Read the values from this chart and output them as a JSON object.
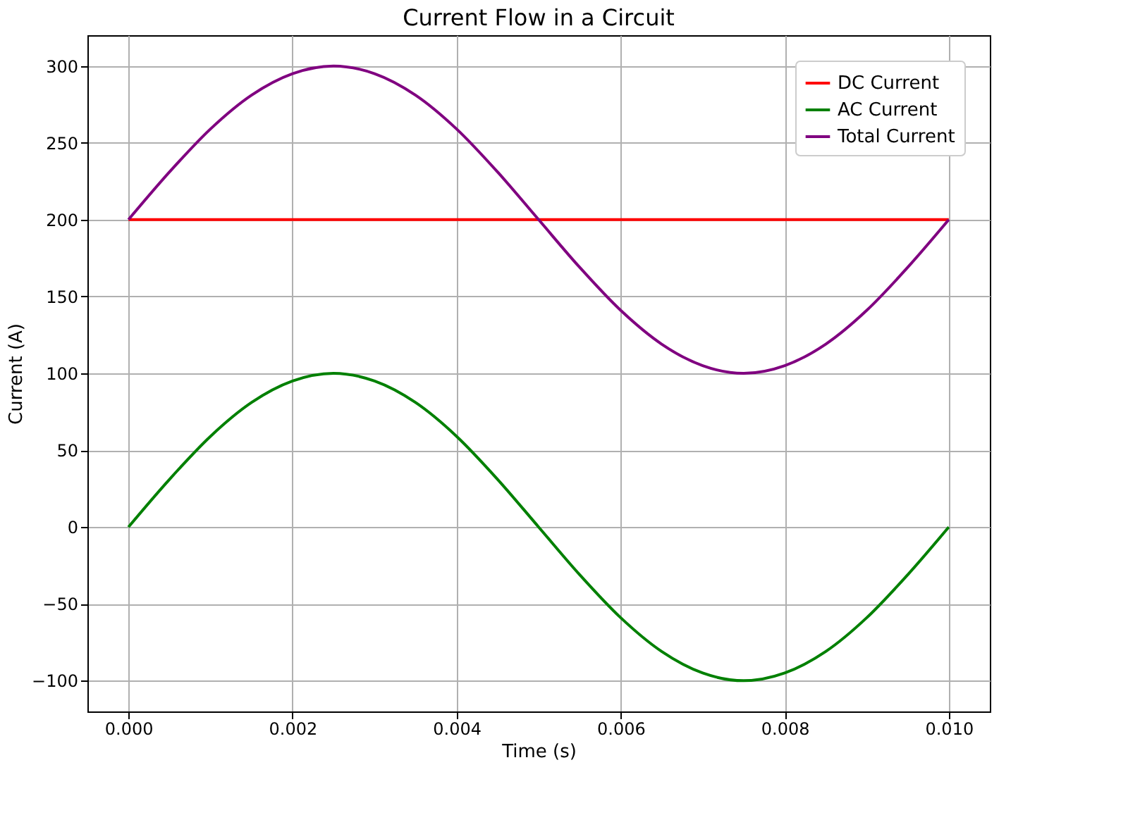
{
  "chart_data": {
    "type": "line",
    "title": "Current Flow in a Circuit",
    "xlabel": "Time (s)",
    "ylabel": "Current (A)",
    "x": [
      0,
      0.0005,
      0.001,
      0.0015,
      0.002,
      0.0025,
      0.003,
      0.0035,
      0.004,
      0.0045,
      0.005,
      0.0055,
      0.006,
      0.0065,
      0.007,
      0.0075,
      0.008,
      0.0085,
      0.009,
      0.0095,
      0.01
    ],
    "series": [
      {
        "name": "DC Current",
        "color": "#ff0000",
        "values": [
          200,
          200,
          200,
          200,
          200,
          200,
          200,
          200,
          200,
          200,
          200,
          200,
          200,
          200,
          200,
          200,
          200,
          200,
          200,
          200,
          200
        ]
      },
      {
        "name": "AC Current",
        "color": "#008000",
        "values": [
          0,
          31,
          59,
          81,
          95,
          100,
          95,
          81,
          59,
          31,
          0,
          -31,
          -59,
          -81,
          -95,
          -100,
          -95,
          -81,
          -59,
          -31,
          0
        ]
      },
      {
        "name": "Total Current",
        "color": "#800080",
        "values": [
          200,
          231,
          259,
          281,
          295,
          300,
          295,
          281,
          259,
          231,
          200,
          169,
          141,
          119,
          105,
          100,
          105,
          119,
          141,
          169,
          200
        ]
      }
    ],
    "xlim": [
      -0.0005,
      0.0105
    ],
    "xticks": [
      {
        "value": 0,
        "label": "0.000"
      },
      {
        "value": 0.002,
        "label": "0.002"
      },
      {
        "value": 0.004,
        "label": "0.004"
      },
      {
        "value": 0.006,
        "label": "0.006"
      },
      {
        "value": 0.008,
        "label": "0.008"
      },
      {
        "value": 0.01,
        "label": "0.010"
      }
    ],
    "ylim": [
      -120,
      320
    ],
    "yticks": [
      {
        "value": -100,
        "label": "−100"
      },
      {
        "value": -50,
        "label": "−50"
      },
      0,
      50,
      100,
      150,
      200,
      250,
      300
    ],
    "grid": true,
    "legend": "top right",
    "marker": "none",
    "line_style": "solid"
  }
}
